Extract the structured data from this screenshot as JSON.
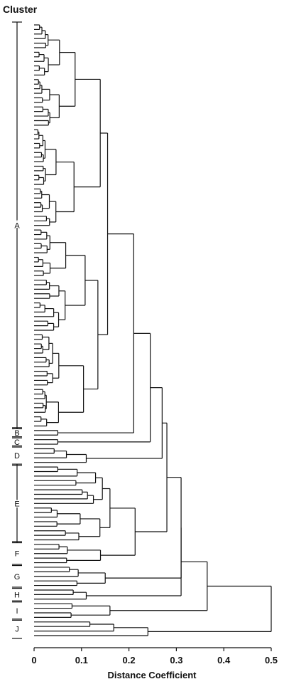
{
  "figure": {
    "cluster_heading": "Cluster",
    "xlabel": "Distance Coefficient",
    "ticks": [
      "0",
      "0.1",
      "0.2",
      "0.3",
      "0.4",
      "0.5"
    ],
    "clusters": [
      {
        "label": "A",
        "from_leaf": 0,
        "to_leaf": 88
      },
      {
        "label": "B",
        "from_leaf": 89,
        "to_leaf": 90
      },
      {
        "label": "C",
        "from_leaf": 91,
        "to_leaf": 92
      },
      {
        "label": "D",
        "from_leaf": 93,
        "to_leaf": 96
      },
      {
        "label": "E",
        "from_leaf": 97,
        "to_leaf": 113
      },
      {
        "label": "F",
        "from_leaf": 114,
        "to_leaf": 118
      },
      {
        "label": "G",
        "from_leaf": 119,
        "to_leaf": 123
      },
      {
        "label": "H",
        "from_leaf": 124,
        "to_leaf": 126
      },
      {
        "label": "I",
        "from_leaf": 127,
        "to_leaf": 130
      },
      {
        "label": "J",
        "from_leaf": 131,
        "to_leaf": 134
      }
    ]
  },
  "chart_data": {
    "type": "dendrogram",
    "x_range": [
      0,
      0.5
    ],
    "leaf_count": 135,
    "root_distance": 0.5
  }
}
